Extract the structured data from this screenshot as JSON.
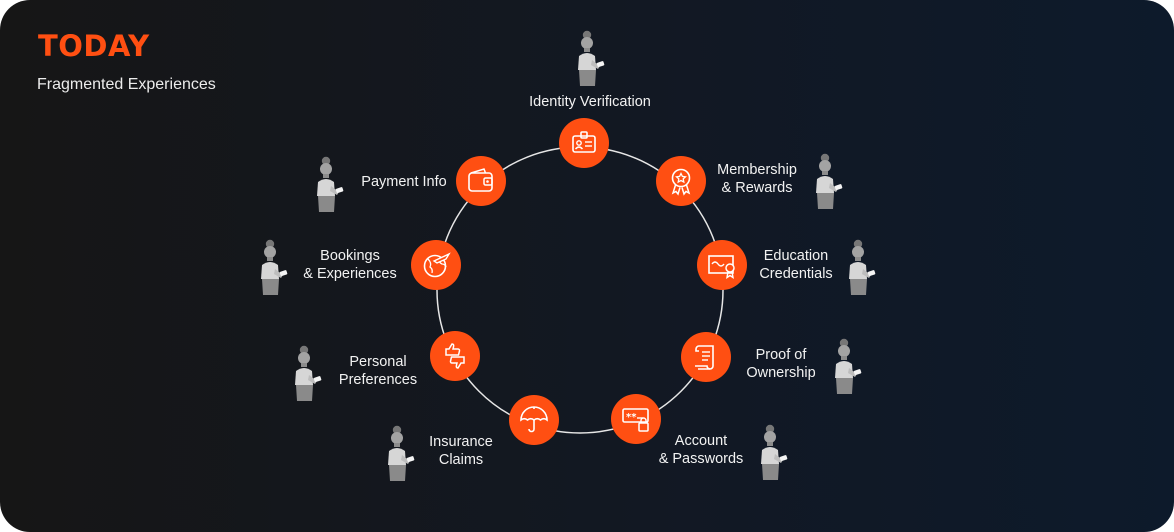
{
  "header": {
    "title": "TODAY",
    "subtitle": "Fragmented Experiences"
  },
  "colors": {
    "accent": "#ff4f12",
    "ring": "#e6e6e6",
    "text": "#f2f2f2"
  },
  "items": [
    {
      "id": "identity-verification",
      "lines": [
        "Identity Verification"
      ],
      "icon": "id-badge-icon"
    },
    {
      "id": "membership-rewards",
      "lines": [
        "Membership",
        "& Rewards"
      ],
      "icon": "award-ribbon-icon"
    },
    {
      "id": "education-credentials",
      "lines": [
        "Education",
        "Credentials"
      ],
      "icon": "certificate-icon"
    },
    {
      "id": "proof-of-ownership",
      "lines": [
        "Proof of",
        "Ownership"
      ],
      "icon": "scroll-document-icon"
    },
    {
      "id": "account-passwords",
      "lines": [
        "Account",
        "& Passwords"
      ],
      "icon": "password-lock-icon"
    },
    {
      "id": "insurance-claims",
      "lines": [
        "Insurance",
        "Claims"
      ],
      "icon": "umbrella-icon"
    },
    {
      "id": "personal-preferences",
      "lines": [
        "Personal",
        "Preferences"
      ],
      "icon": "thumbs-up-down-icon"
    },
    {
      "id": "bookings-experiences",
      "lines": [
        "Bookings",
        "& Experiences"
      ],
      "icon": "globe-plane-icon"
    },
    {
      "id": "payment-info",
      "lines": [
        "Payment Info"
      ],
      "icon": "wallet-icon"
    }
  ]
}
